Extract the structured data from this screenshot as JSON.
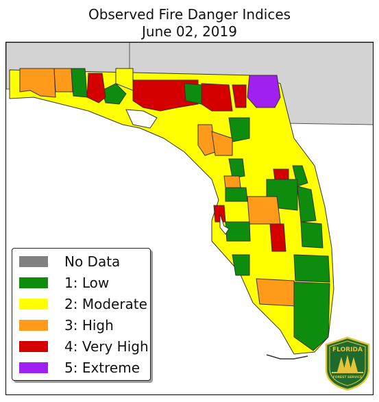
{
  "title_line1": "Observed Fire Danger Indices",
  "title_line2": "June 02, 2019",
  "legend": [
    {
      "label": "No Data",
      "color": "#808080"
    },
    {
      "label": "1: Low",
      "color": "#0e8c0e"
    },
    {
      "label": "2: Moderate",
      "color": "#ffff00"
    },
    {
      "label": "3: High",
      "color": "#ff9a1a"
    },
    {
      "label": "4: Very High",
      "color": "#d40000"
    },
    {
      "label": "5: Extreme",
      "color": "#a020f0"
    }
  ],
  "colors": {
    "neighbor_states": "#d3d3d3",
    "water": "#ffffff",
    "low": "#0e8c0e",
    "moderate": "#ffff00",
    "high": "#ff9a1a",
    "very_high": "#d40000",
    "extreme": "#a020f0",
    "logo_green": "#1e6b2d",
    "logo_gold": "#e5c43a"
  },
  "logo": {
    "top_text": "FLORIDA",
    "bottom_text": "FOREST SERVICE"
  }
}
